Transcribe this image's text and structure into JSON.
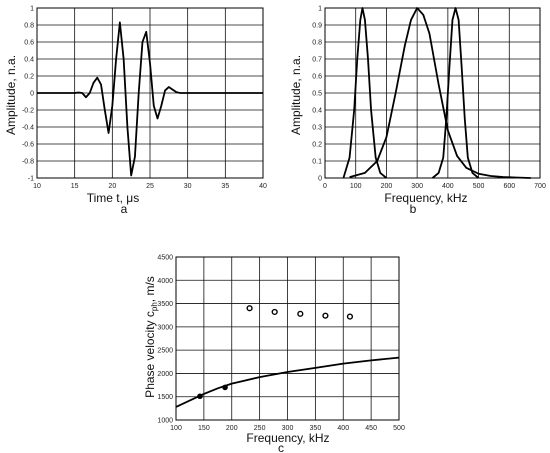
{
  "chart_data": [
    {
      "id": "a",
      "type": "line",
      "panel_label": "a",
      "xlabel": "Time t, μs",
      "ylabel": "Amplitude, n.a.",
      "xlim": [
        10,
        40
      ],
      "ylim": [
        -1,
        1
      ],
      "xticks": [
        10,
        15,
        20,
        25,
        30,
        35,
        40
      ],
      "yticks": [
        -1,
        -0.8,
        -0.6,
        -0.4,
        -0.2,
        0,
        0.2,
        0.4,
        0.6,
        0.8,
        1
      ],
      "grid": true,
      "series": [
        {
          "x": [
            10,
            15,
            15.5,
            16,
            16.5,
            17,
            17.5,
            18,
            18.5,
            19,
            19.5,
            20,
            20.5,
            21,
            21.5,
            22,
            22.5,
            23,
            23.5,
            24,
            24.5,
            25,
            25.5,
            26,
            26.5,
            27,
            27.5,
            28,
            28.5,
            29,
            30,
            40
          ],
          "y": [
            0,
            0,
            0.005,
            0.0,
            -0.05,
            0.0,
            0.12,
            0.18,
            0.1,
            -0.2,
            -0.47,
            -0.15,
            0.4,
            0.83,
            0.4,
            -0.4,
            -0.97,
            -0.75,
            0.0,
            0.6,
            0.72,
            0.35,
            -0.15,
            -0.3,
            -0.15,
            0.03,
            0.07,
            0.04,
            0.01,
            0.0,
            0,
            0
          ]
        }
      ]
    },
    {
      "id": "b",
      "type": "line",
      "panel_label": "b",
      "xlabel": "Frequency, kHz",
      "ylabel": "Amplitude, n.a.",
      "xlim": [
        0,
        700
      ],
      "ylim": [
        0,
        1
      ],
      "xticks": [
        0,
        100,
        200,
        300,
        400,
        500,
        600,
        700
      ],
      "yticks": [
        0,
        0.1,
        0.2,
        0.3,
        0.4,
        0.5,
        0.6,
        0.7,
        0.8,
        0.9,
        1
      ],
      "grid": true,
      "series": [
        {
          "x": [
            60,
            80,
            95,
            105,
            115,
            122,
            130,
            140,
            150,
            165,
            180,
            200
          ],
          "y": [
            0,
            0.12,
            0.4,
            0.7,
            0.93,
            1.0,
            0.93,
            0.7,
            0.4,
            0.12,
            0.03,
            0
          ]
        },
        {
          "x": [
            80,
            130,
            170,
            200,
            230,
            260,
            280,
            300,
            320,
            340,
            370,
            400,
            430,
            460,
            500,
            540,
            580,
            620,
            670
          ],
          "y": [
            0.005,
            0.03,
            0.1,
            0.24,
            0.5,
            0.78,
            0.93,
            1.0,
            0.96,
            0.85,
            0.55,
            0.28,
            0.13,
            0.06,
            0.025,
            0.012,
            0.006,
            0.003,
            0
          ]
        },
        {
          "x": [
            350,
            370,
            385,
            395,
            405,
            415,
            425,
            435,
            445,
            455,
            465,
            480,
            500
          ],
          "y": [
            0,
            0.03,
            0.12,
            0.35,
            0.65,
            0.93,
            1.0,
            0.93,
            0.65,
            0.35,
            0.12,
            0.03,
            0
          ]
        }
      ]
    },
    {
      "id": "c",
      "type": "scatter",
      "panel_label": "c",
      "xlabel": "Frequency, kHz",
      "ylabel": "Phase velocity c",
      "ylabel_sub": "ph",
      "ylabel_unit": ", m/s",
      "xlim": [
        100,
        500
      ],
      "ylim": [
        1000,
        4500
      ],
      "xticks": [
        100,
        150,
        200,
        250,
        300,
        350,
        400,
        450,
        500
      ],
      "yticks": [
        1000,
        1500,
        2000,
        2500,
        3000,
        3500,
        4000,
        4500
      ],
      "grid": true,
      "curve": {
        "x": [
          100,
          125,
          150,
          175,
          200,
          250,
          300,
          350,
          400,
          450,
          500
        ],
        "y": [
          1280,
          1420,
          1560,
          1680,
          1780,
          1920,
          2030,
          2120,
          2210,
          2280,
          2340
        ]
      },
      "filled_points": {
        "x": [
          143,
          188
        ],
        "y": [
          1510,
          1700
        ]
      },
      "open_points": {
        "x": [
          232,
          277,
          323,
          368,
          412
        ],
        "y": [
          3400,
          3320,
          3280,
          3240,
          3220
        ]
      }
    }
  ]
}
